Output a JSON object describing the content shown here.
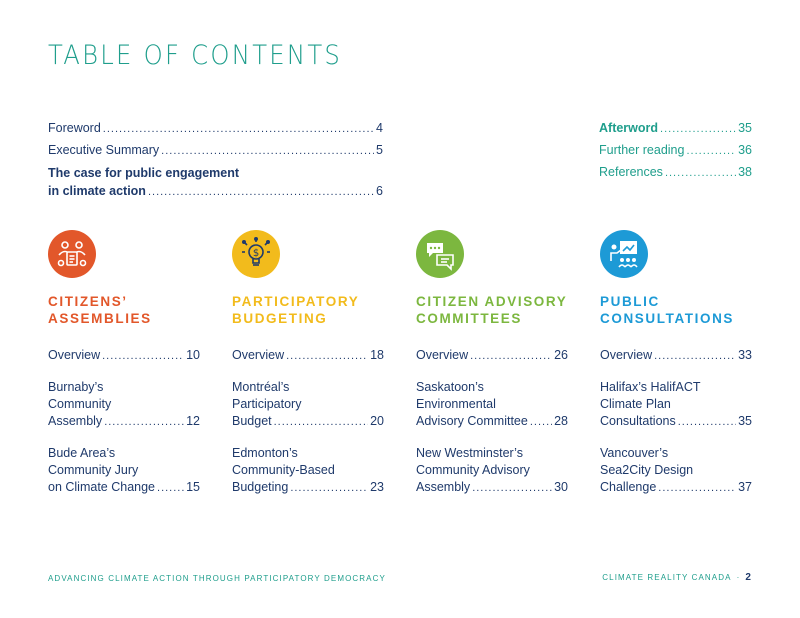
{
  "title": "TABLE OF CONTENTS",
  "toc_main": {
    "foreword": {
      "label": "Foreword",
      "page": "4"
    },
    "executive_summary": {
      "label": "Executive Summary",
      "page": "5"
    },
    "case": {
      "line1": "The case for public engagement",
      "line2": "in climate action",
      "page": "6"
    },
    "afterword": {
      "label": "Afterword",
      "page": "35"
    },
    "further_reading": {
      "label": "Further reading",
      "page": "36"
    },
    "references": {
      "label": "References",
      "page": "38"
    }
  },
  "sections": [
    {
      "title_line1": "CITIZENS’",
      "title_line2": "ASSEMBLIES",
      "color": "#e2572a",
      "icon": "people-group-icon",
      "overview": {
        "label": "Overview",
        "page": "10"
      },
      "entries": [
        {
          "lines": [
            "Burnaby’s",
            "Community"
          ],
          "last": "Assembly",
          "page": "12"
        },
        {
          "lines": [
            "Bude Area’s",
            "Community Jury"
          ],
          "last": "on Climate Change",
          "page": "15"
        }
      ]
    },
    {
      "title_line1": "PARTICIPATORY",
      "title_line2": "BUDGETING",
      "color": "#f2bb1c",
      "icon": "lightbulb-dollar-icon",
      "overview": {
        "label": "Overview",
        "page": "18"
      },
      "entries": [
        {
          "lines": [
            "Montréal’s",
            "Participatory"
          ],
          "last": "Budget",
          "page": "20"
        },
        {
          "lines": [
            "Edmonton’s",
            "Community-Based"
          ],
          "last": "Budgeting",
          "page": "23"
        }
      ]
    },
    {
      "title_line1": "CITIZEN ADVISORY",
      "title_line2": "COMMITTEES",
      "color": "#7cb73f",
      "icon": "chat-bubbles-icon",
      "overview": {
        "label": "Overview",
        "page": "26"
      },
      "entries": [
        {
          "lines": [
            "Saskatoon’s",
            "Environmental"
          ],
          "last": "Advisory Committee",
          "page": "28"
        },
        {
          "lines": [
            "New Westminster’s",
            "Community Advisory"
          ],
          "last": "Assembly",
          "page": "30"
        }
      ]
    },
    {
      "title_line1": "PUBLIC",
      "title_line2": "CONSULTATIONS",
      "color": "#1d9ad6",
      "icon": "presentation-icon",
      "overview": {
        "label": "Overview",
        "page": "33"
      },
      "entries": [
        {
          "lines": [
            "Halifax’s HalifACT",
            "Climate Plan"
          ],
          "last": "Consultations",
          "page": "35"
        },
        {
          "lines": [
            "Vancouver’s",
            "Sea2City Design"
          ],
          "last": "Challenge",
          "page": "37"
        }
      ]
    }
  ],
  "footer": {
    "left": "ADVANCING CLIMATE ACTION THROUGH PARTICIPATORY DEMOCRACY",
    "right": "CLIMATE REALITY CANADA",
    "separator": "·",
    "page": "2"
  }
}
